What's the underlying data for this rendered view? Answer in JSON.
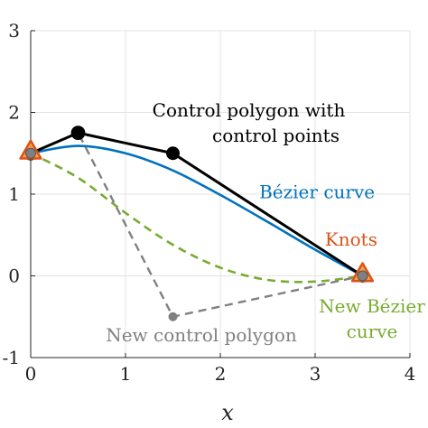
{
  "chart_data": {
    "type": "line",
    "xlabel": "x",
    "ylabel": "",
    "xlim": [
      0,
      4
    ],
    "ylim": [
      -1,
      3
    ],
    "xticks": [
      0,
      1,
      2,
      3,
      4
    ],
    "yticks": [
      -1,
      0,
      1,
      2,
      3
    ],
    "grid": true,
    "series": [
      {
        "name": "Control polygon with control points",
        "style": "solid",
        "color": "#000000",
        "markers": true,
        "x": [
          0,
          0.5,
          1.5,
          3.5
        ],
        "y": [
          1.5,
          1.75,
          1.5,
          0
        ]
      },
      {
        "name": "Bézier curve",
        "style": "solid",
        "color": "#0072BD",
        "markers": false,
        "x": [
          0,
          0.5,
          1.0,
          1.5,
          2.0,
          2.5,
          3.0,
          3.5
        ],
        "y": [
          1.5,
          1.59,
          1.5,
          1.29,
          0.99,
          0.66,
          0.32,
          0
        ]
      },
      {
        "name": "New control polygon",
        "style": "dashed",
        "color": "#808080",
        "markers": true,
        "x": [
          0,
          0.5,
          1.5,
          3.5
        ],
        "y": [
          1.5,
          1.75,
          -0.5,
          0
        ]
      },
      {
        "name": "New Bézier curve",
        "style": "dashed",
        "color": "#77AC30",
        "markers": false,
        "x": [
          0,
          0.5,
          1.0,
          1.5,
          2.0,
          2.5,
          3.0,
          3.5
        ],
        "y": [
          1.5,
          1.2,
          0.77,
          0.38,
          0.1,
          -0.05,
          -0.07,
          0
        ]
      }
    ],
    "knots": {
      "name": "Knots",
      "color": "#D95319",
      "x": [
        0,
        3.5
      ],
      "y": [
        1.5,
        0
      ]
    },
    "annotations": [
      {
        "id": "control-polygon",
        "lines": [
          "Control polygon with",
          "control points"
        ],
        "color": "#000000",
        "at": [
          2.3,
          1.95
        ]
      },
      {
        "id": "bezier",
        "lines": [
          "Bézier curve"
        ],
        "color": "#0072BD",
        "at": [
          3.02,
          0.95
        ]
      },
      {
        "id": "knots",
        "lines": [
          "Knots"
        ],
        "color": "#D95319",
        "at": [
          3.38,
          0.37
        ]
      },
      {
        "id": "new-control-polygon",
        "lines": [
          "New control polygon"
        ],
        "color": "#808080",
        "at": [
          1.8,
          -0.8
        ]
      },
      {
        "id": "new-bezier",
        "lines": [
          "New Bézier",
          "curve"
        ],
        "color": "#77AC30",
        "at": [
          3.6,
          -0.45
        ]
      }
    ]
  }
}
